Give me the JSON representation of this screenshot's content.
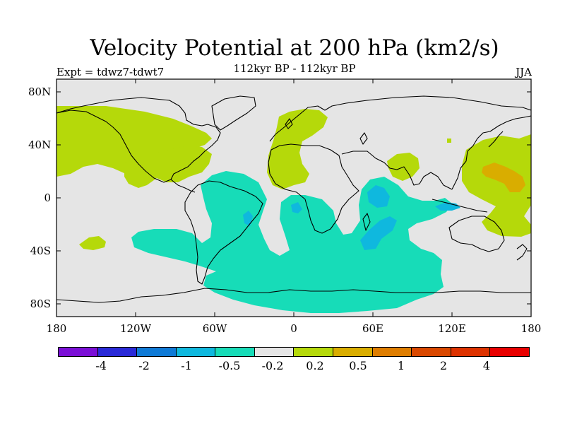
{
  "title": "Velocity Potential at 200 hPa (km2/s)",
  "subtitle": "112kyr BP - 112kyr BP",
  "left_label": "Expt = tdwz7-tdwt7",
  "right_label": "JJA",
  "y_ticks": [
    "80N",
    "40N",
    "0",
    "40S",
    "80S"
  ],
  "x_ticks": [
    "180",
    "120W",
    "60W",
    "0",
    "60E",
    "120E",
    "180"
  ],
  "colorbar": {
    "colors": [
      "#7b0fd6",
      "#2a2ad8",
      "#0f7ad6",
      "#0fb8de",
      "#17dcb8",
      "#e5e5e5",
      "#b5d90a",
      "#d9ad00",
      "#de7d00",
      "#d94800",
      "#dd3200",
      "#e80000"
    ],
    "labels": [
      "-4",
      "-2",
      "-1",
      "-0.5",
      "-0.2",
      "0.2",
      "0.5",
      "1",
      "2",
      "4"
    ]
  },
  "map_colors": {
    "ocean": "#e5e5e5",
    "positive_weak": "#b5d90a",
    "positive_mid": "#d9ad00",
    "negative_weak": "#17dcb8",
    "negative_mid": "#0fb8de",
    "coast": "#000000"
  }
}
